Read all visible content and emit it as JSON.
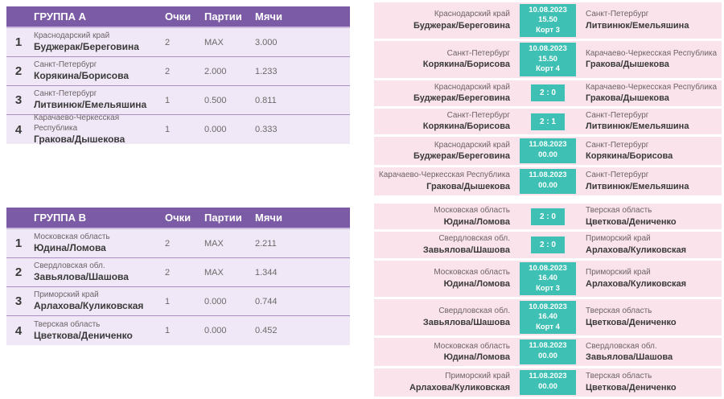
{
  "colors": {
    "header_purple": "#7B5AA6",
    "row_lavender": "#F0E8F6",
    "row_separator": "#A98FC4",
    "match_pink": "#FAE3EB",
    "badge_teal": "#3FC0B4"
  },
  "groups": [
    {
      "title": "ГРУППА А",
      "columns": {
        "points": "Очки",
        "games": "Партии",
        "balls": "Мячи"
      },
      "rows": [
        {
          "rank": "1",
          "region": "Краснодарский край",
          "team": "Буджерак/Береговина",
          "points": "2",
          "games": "MAX",
          "balls": "3.000"
        },
        {
          "rank": "2",
          "region": "Санкт-Петербург",
          "team": "Корякина/Борисова",
          "points": "2",
          "games": "2.000",
          "balls": "1.233"
        },
        {
          "rank": "3",
          "region": "Санкт-Петербург",
          "team": "Литвинюк/Емельяшина",
          "points": "1",
          "games": "0.500",
          "balls": "0.811"
        },
        {
          "rank": "4",
          "region": "Карачаево-Черкесская Республика",
          "team": "Гракова/Дышекова",
          "points": "1",
          "games": "0.000",
          "balls": "0.333"
        }
      ],
      "matches": [
        {
          "left": {
            "region": "Краснодарский край",
            "team": "Буджерак/Береговина"
          },
          "badge": {
            "line1": "10.08.2023",
            "line2": "15.50",
            "line3": "Корт 3"
          },
          "right": {
            "region": "Санкт-Петербург",
            "team": "Литвинюк/Емельяшина"
          }
        },
        {
          "left": {
            "region": "Санкт-Петербург",
            "team": "Корякина/Борисова"
          },
          "badge": {
            "line1": "10.08.2023",
            "line2": "15.50",
            "line3": "Корт 4"
          },
          "right": {
            "region": "Карачаево-Черкесская Республика",
            "team": "Гракова/Дышекова"
          }
        },
        {
          "left": {
            "region": "Краснодарский край",
            "team": "Буджерак/Береговина"
          },
          "badge": {
            "line1": "2 : 0",
            "line2": "",
            "line3": ""
          },
          "right": {
            "region": "Карачаево-Черкесская Республика",
            "team": "Гракова/Дышекова"
          }
        },
        {
          "left": {
            "region": "Санкт-Петербург",
            "team": "Корякина/Борисова"
          },
          "badge": {
            "line1": "2 : 1",
            "line2": "",
            "line3": ""
          },
          "right": {
            "region": "Санкт-Петербург",
            "team": "Литвинюк/Емельяшина"
          }
        },
        {
          "left": {
            "region": "Краснодарский край",
            "team": "Буджерак/Береговина"
          },
          "badge": {
            "line1": "11.08.2023",
            "line2": "00.00",
            "line3": ""
          },
          "right": {
            "region": "Санкт-Петербург",
            "team": "Корякина/Борисова"
          }
        },
        {
          "left": {
            "region": "Карачаево-Черкесская Республика",
            "team": "Гракова/Дышекова"
          },
          "badge": {
            "line1": "11.08.2023",
            "line2": "00.00",
            "line3": ""
          },
          "right": {
            "region": "Санкт-Петербург",
            "team": "Литвинюк/Емельяшина"
          }
        }
      ]
    },
    {
      "title": "ГРУППА В",
      "columns": {
        "points": "Очки",
        "games": "Партии",
        "balls": "Мячи"
      },
      "rows": [
        {
          "rank": "1",
          "region": "Московская область",
          "team": "Юдина/Ломова",
          "points": "2",
          "games": "MAX",
          "balls": "2.211"
        },
        {
          "rank": "2",
          "region": "Свердловская обл.",
          "team": "Завьялова/Шашова",
          "points": "2",
          "games": "MAX",
          "balls": "1.344"
        },
        {
          "rank": "3",
          "region": "Приморский край",
          "team": "Арлахова/Куликовская",
          "points": "1",
          "games": "0.000",
          "balls": "0.744"
        },
        {
          "rank": "4",
          "region": "Тверская область",
          "team": "Цветкова/Дениченко",
          "points": "1",
          "games": "0.000",
          "balls": "0.452"
        }
      ],
      "matches": [
        {
          "left": {
            "region": "Московская область",
            "team": "Юдина/Ломова"
          },
          "badge": {
            "line1": "2 : 0",
            "line2": "",
            "line3": ""
          },
          "right": {
            "region": "Тверская область",
            "team": "Цветкова/Дениченко"
          }
        },
        {
          "left": {
            "region": "Свердловская обл.",
            "team": "Завьялова/Шашова"
          },
          "badge": {
            "line1": "2 : 0",
            "line2": "",
            "line3": ""
          },
          "right": {
            "region": "Приморский край",
            "team": "Арлахова/Куликовская"
          }
        },
        {
          "left": {
            "region": "Московская область",
            "team": "Юдина/Ломова"
          },
          "badge": {
            "line1": "10.08.2023",
            "line2": "16.40",
            "line3": "Корт 3"
          },
          "right": {
            "region": "Приморский край",
            "team": "Арлахова/Куликовская"
          }
        },
        {
          "left": {
            "region": "Свердловская обл.",
            "team": "Завьялова/Шашова"
          },
          "badge": {
            "line1": "10.08.2023",
            "line2": "16.40",
            "line3": "Корт 4"
          },
          "right": {
            "region": "Тверская область",
            "team": "Цветкова/Дениченко"
          }
        },
        {
          "left": {
            "region": "Московская область",
            "team": "Юдина/Ломова"
          },
          "badge": {
            "line1": "11.08.2023",
            "line2": "00.00",
            "line3": ""
          },
          "right": {
            "region": "Свердловская обл.",
            "team": "Завьялова/Шашова"
          }
        },
        {
          "left": {
            "region": "Приморский край",
            "team": "Арлахова/Куликовская"
          },
          "badge": {
            "line1": "11.08.2023",
            "line2": "00.00",
            "line3": ""
          },
          "right": {
            "region": "Тверская область",
            "team": "Цветкова/Дениченко"
          }
        }
      ]
    }
  ]
}
